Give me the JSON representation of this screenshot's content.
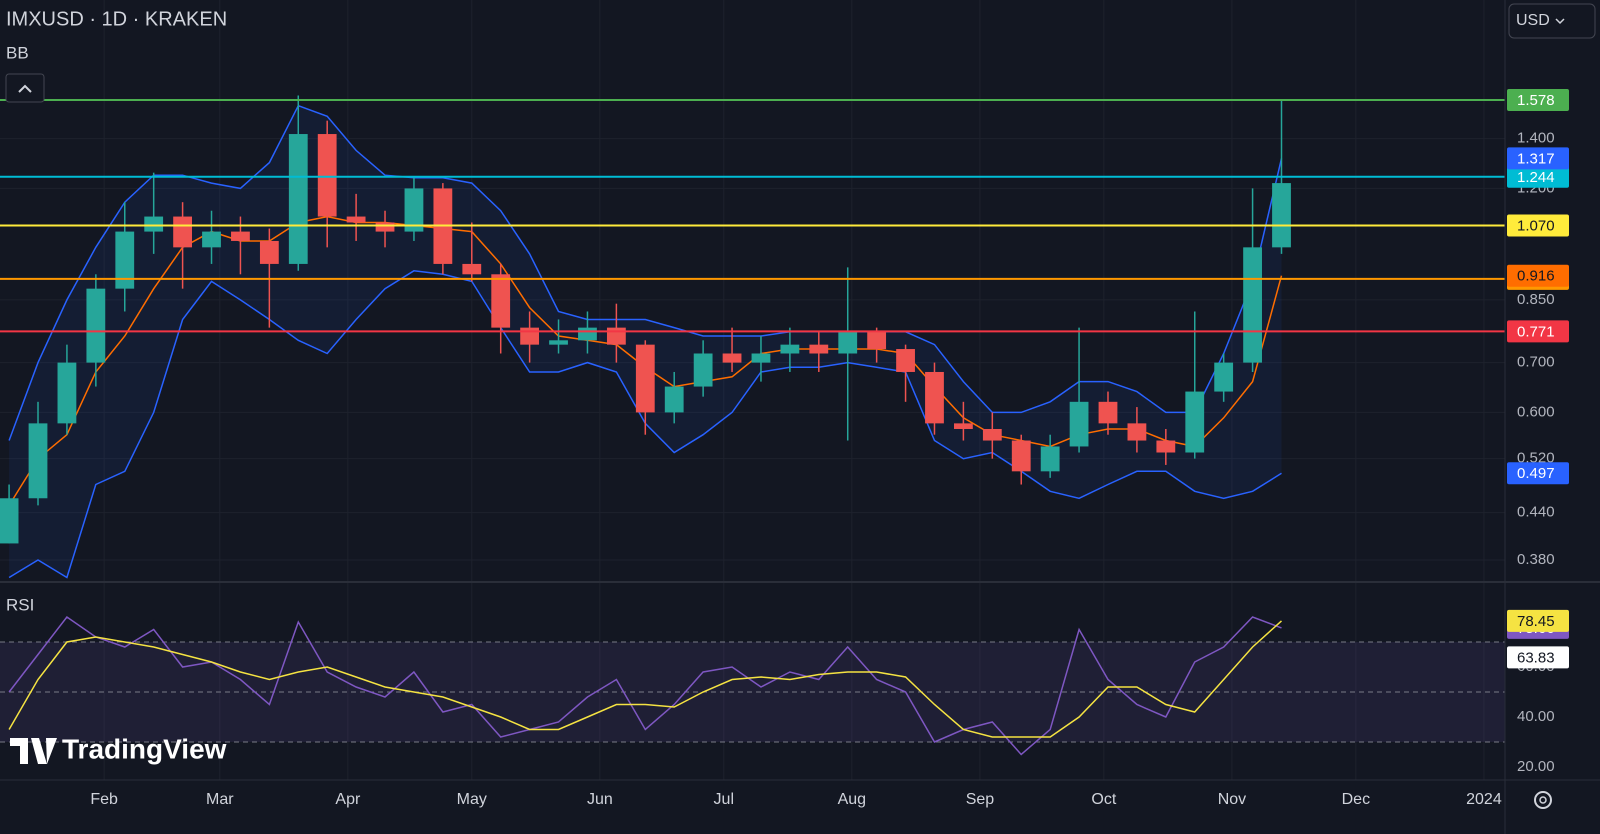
{
  "header": {
    "symbol_title": "IMXUSD · 1D · KRAKEN",
    "indicator": "BB",
    "currency": "USD",
    "watermark": "TradingView"
  },
  "chart_data": [
    {
      "type": "candlestick",
      "x": [
        8,
        15,
        22,
        29,
        36,
        43,
        50,
        57,
        64,
        71,
        78,
        85,
        92,
        99,
        106,
        113,
        120,
        127,
        134,
        141,
        148,
        155,
        162,
        169,
        176,
        183,
        190,
        197,
        204,
        211,
        218,
        225,
        232,
        239,
        246,
        253,
        260,
        267,
        274,
        281,
        288,
        295,
        302,
        309,
        316
      ],
      "open": [
        0.4,
        0.46,
        0.58,
        0.7,
        0.88,
        1.05,
        1.1,
        1.0,
        1.05,
        1.02,
        0.95,
        1.42,
        1.1,
        1.08,
        1.05,
        1.2,
        0.95,
        0.92,
        0.78,
        0.74,
        0.75,
        0.78,
        0.74,
        0.6,
        0.65,
        0.72,
        0.7,
        0.72,
        0.74,
        0.72,
        0.77,
        0.73,
        0.68,
        0.58,
        0.57,
        0.55,
        0.5,
        0.54,
        0.62,
        0.58,
        0.55,
        0.53,
        0.64,
        0.7,
        1.0
      ],
      "high": [
        0.48,
        0.62,
        0.74,
        0.92,
        1.15,
        1.26,
        1.15,
        1.12,
        1.1,
        1.06,
        1.6,
        1.48,
        1.18,
        1.12,
        1.24,
        1.22,
        1.08,
        0.95,
        0.82,
        0.8,
        0.82,
        0.84,
        0.75,
        0.68,
        0.75,
        0.78,
        0.76,
        0.78,
        0.77,
        0.94,
        0.78,
        0.74,
        0.7,
        0.62,
        0.6,
        0.56,
        0.56,
        0.78,
        0.64,
        0.61,
        0.57,
        0.82,
        0.72,
        1.2,
        1.58
      ],
      "low": [
        0.4,
        0.45,
        0.56,
        0.65,
        0.82,
        0.98,
        0.88,
        0.95,
        0.92,
        0.78,
        0.93,
        1.0,
        1.02,
        1.0,
        1.02,
        0.92,
        0.9,
        0.72,
        0.7,
        0.72,
        0.72,
        0.7,
        0.56,
        0.58,
        0.63,
        0.68,
        0.66,
        0.68,
        0.68,
        0.55,
        0.7,
        0.62,
        0.56,
        0.55,
        0.52,
        0.48,
        0.49,
        0.53,
        0.56,
        0.53,
        0.51,
        0.52,
        0.62,
        0.68,
        0.98
      ],
      "close": [
        0.46,
        0.58,
        0.7,
        0.88,
        1.05,
        1.1,
        1.0,
        1.05,
        1.02,
        0.95,
        1.42,
        1.1,
        1.08,
        1.05,
        1.2,
        0.95,
        0.92,
        0.78,
        0.74,
        0.75,
        0.78,
        0.74,
        0.6,
        0.65,
        0.72,
        0.7,
        0.72,
        0.74,
        0.72,
        0.77,
        0.73,
        0.68,
        0.58,
        0.57,
        0.55,
        0.5,
        0.54,
        0.62,
        0.58,
        0.55,
        0.53,
        0.64,
        0.7,
        1.0,
        1.22
      ],
      "up_color": "#26a69a",
      "down_color": "#ef5350",
      "bb_upper": {
        "color": "#2962ff",
        "values": [
          0.55,
          0.7,
          0.85,
          1.0,
          1.15,
          1.25,
          1.25,
          1.22,
          1.2,
          1.3,
          1.55,
          1.5,
          1.35,
          1.25,
          1.24,
          1.24,
          1.22,
          1.12,
          0.98,
          0.82,
          0.8,
          0.8,
          0.8,
          0.78,
          0.76,
          0.76,
          0.76,
          0.77,
          0.77,
          0.77,
          0.77,
          0.77,
          0.74,
          0.66,
          0.6,
          0.6,
          0.62,
          0.66,
          0.66,
          0.64,
          0.6,
          0.6,
          0.72,
          0.9,
          1.317
        ]
      },
      "bb_basis": {
        "color": "#ff6d00",
        "values": [
          0.45,
          0.52,
          0.56,
          0.68,
          0.76,
          0.88,
          1.0,
          1.05,
          1.02,
          1.02,
          1.08,
          1.1,
          1.08,
          1.08,
          1.07,
          1.06,
          1.05,
          0.95,
          0.83,
          0.76,
          0.75,
          0.74,
          0.69,
          0.65,
          0.66,
          0.67,
          0.72,
          0.73,
          0.73,
          0.73,
          0.73,
          0.72,
          0.65,
          0.59,
          0.56,
          0.55,
          0.54,
          0.56,
          0.57,
          0.57,
          0.55,
          0.54,
          0.59,
          0.66,
          0.916
        ]
      },
      "bb_lower": {
        "color": "#2962ff",
        "values": [
          0.36,
          0.38,
          0.36,
          0.48,
          0.5,
          0.6,
          0.8,
          0.9,
          0.85,
          0.8,
          0.75,
          0.72,
          0.8,
          0.88,
          0.93,
          0.92,
          0.9,
          0.78,
          0.68,
          0.68,
          0.7,
          0.68,
          0.58,
          0.53,
          0.56,
          0.6,
          0.68,
          0.69,
          0.69,
          0.7,
          0.69,
          0.68,
          0.55,
          0.52,
          0.53,
          0.5,
          0.47,
          0.46,
          0.48,
          0.5,
          0.5,
          0.47,
          0.46,
          0.47,
          0.497
        ]
      },
      "levels": [
        {
          "value": 1.578,
          "color": "#4caf50"
        },
        {
          "value": 1.244,
          "color": "#00bcd4"
        },
        {
          "value": 1.07,
          "label": "1.070",
          "color": "#ffeb3b"
        },
        {
          "value": 0.907,
          "color": "#ff9800"
        },
        {
          "value": 0.771,
          "color": "#f23645"
        }
      ],
      "log_scale": true,
      "xlim": [
        5.8,
        370.1
      ],
      "xticks": [
        {
          "value": 31,
          "label": "Feb"
        },
        {
          "value": 59,
          "label": "Mar"
        },
        {
          "value": 90,
          "label": "Apr"
        },
        {
          "value": 120,
          "label": "May"
        },
        {
          "value": 151,
          "label": "Jun"
        },
        {
          "value": 181,
          "label": "Jul"
        },
        {
          "value": 212,
          "label": "Aug"
        },
        {
          "value": 243,
          "label": "Sep"
        },
        {
          "value": 273,
          "label": "Oct"
        },
        {
          "value": 304,
          "label": "Nov"
        },
        {
          "value": 334,
          "label": "Dec"
        },
        {
          "value": 365,
          "label": "2024"
        }
      ],
      "ylim": [
        0.355,
        2.15
      ],
      "yticks": [
        {
          "value": 0.38,
          "label": "0.380"
        },
        {
          "value": 0.44,
          "label": "0.440"
        },
        {
          "value": 0.52,
          "label": "0.520"
        },
        {
          "value": 0.6,
          "label": "0.600"
        },
        {
          "value": 0.7,
          "label": "0.700"
        },
        {
          "value": 0.85,
          "label": "0.850"
        },
        {
          "value": 1.2,
          "label": "1.200"
        },
        {
          "value": 1.4,
          "label": "1.400"
        }
      ],
      "grid": true
    },
    {
      "type": "line",
      "title": "RSI",
      "x": [
        8,
        15,
        22,
        29,
        36,
        43,
        50,
        57,
        64,
        71,
        78,
        85,
        92,
        99,
        106,
        113,
        120,
        127,
        134,
        141,
        148,
        155,
        162,
        169,
        176,
        183,
        190,
        197,
        204,
        211,
        218,
        225,
        232,
        239,
        246,
        253,
        260,
        267,
        274,
        281,
        288,
        295,
        302,
        309,
        316
      ],
      "series": [
        {
          "color": "#7e57c2",
          "values": [
            50,
            65,
            80,
            72,
            68,
            75,
            60,
            62,
            55,
            45,
            78,
            58,
            52,
            48,
            58,
            42,
            45,
            32,
            35,
            38,
            48,
            55,
            35,
            45,
            58,
            60,
            52,
            58,
            55,
            68,
            55,
            50,
            30,
            35,
            38,
            25,
            35,
            75,
            55,
            45,
            40,
            62,
            68,
            80,
            75.66
          ]
        },
        {
          "color": "#f5e342",
          "values": [
            35,
            55,
            70,
            72,
            70,
            68,
            65,
            62,
            58,
            55,
            58,
            60,
            56,
            52,
            50,
            48,
            44,
            40,
            35,
            35,
            40,
            45,
            45,
            44,
            50,
            55,
            56,
            55,
            57,
            58,
            58,
            56,
            45,
            35,
            32,
            32,
            32,
            40,
            52,
            52,
            45,
            42,
            55,
            68,
            78.45
          ]
        }
      ],
      "marker_value": 63.83,
      "hlines": [
        30,
        50,
        70
      ],
      "xlim": [
        5.8,
        370.1
      ],
      "ylim": [
        14.8,
        91.6
      ],
      "yticks": [
        {
          "value": 20,
          "label": "20.00"
        },
        {
          "value": 40,
          "label": "40.00"
        },
        {
          "value": 60,
          "label": "60.00"
        }
      ]
    }
  ]
}
